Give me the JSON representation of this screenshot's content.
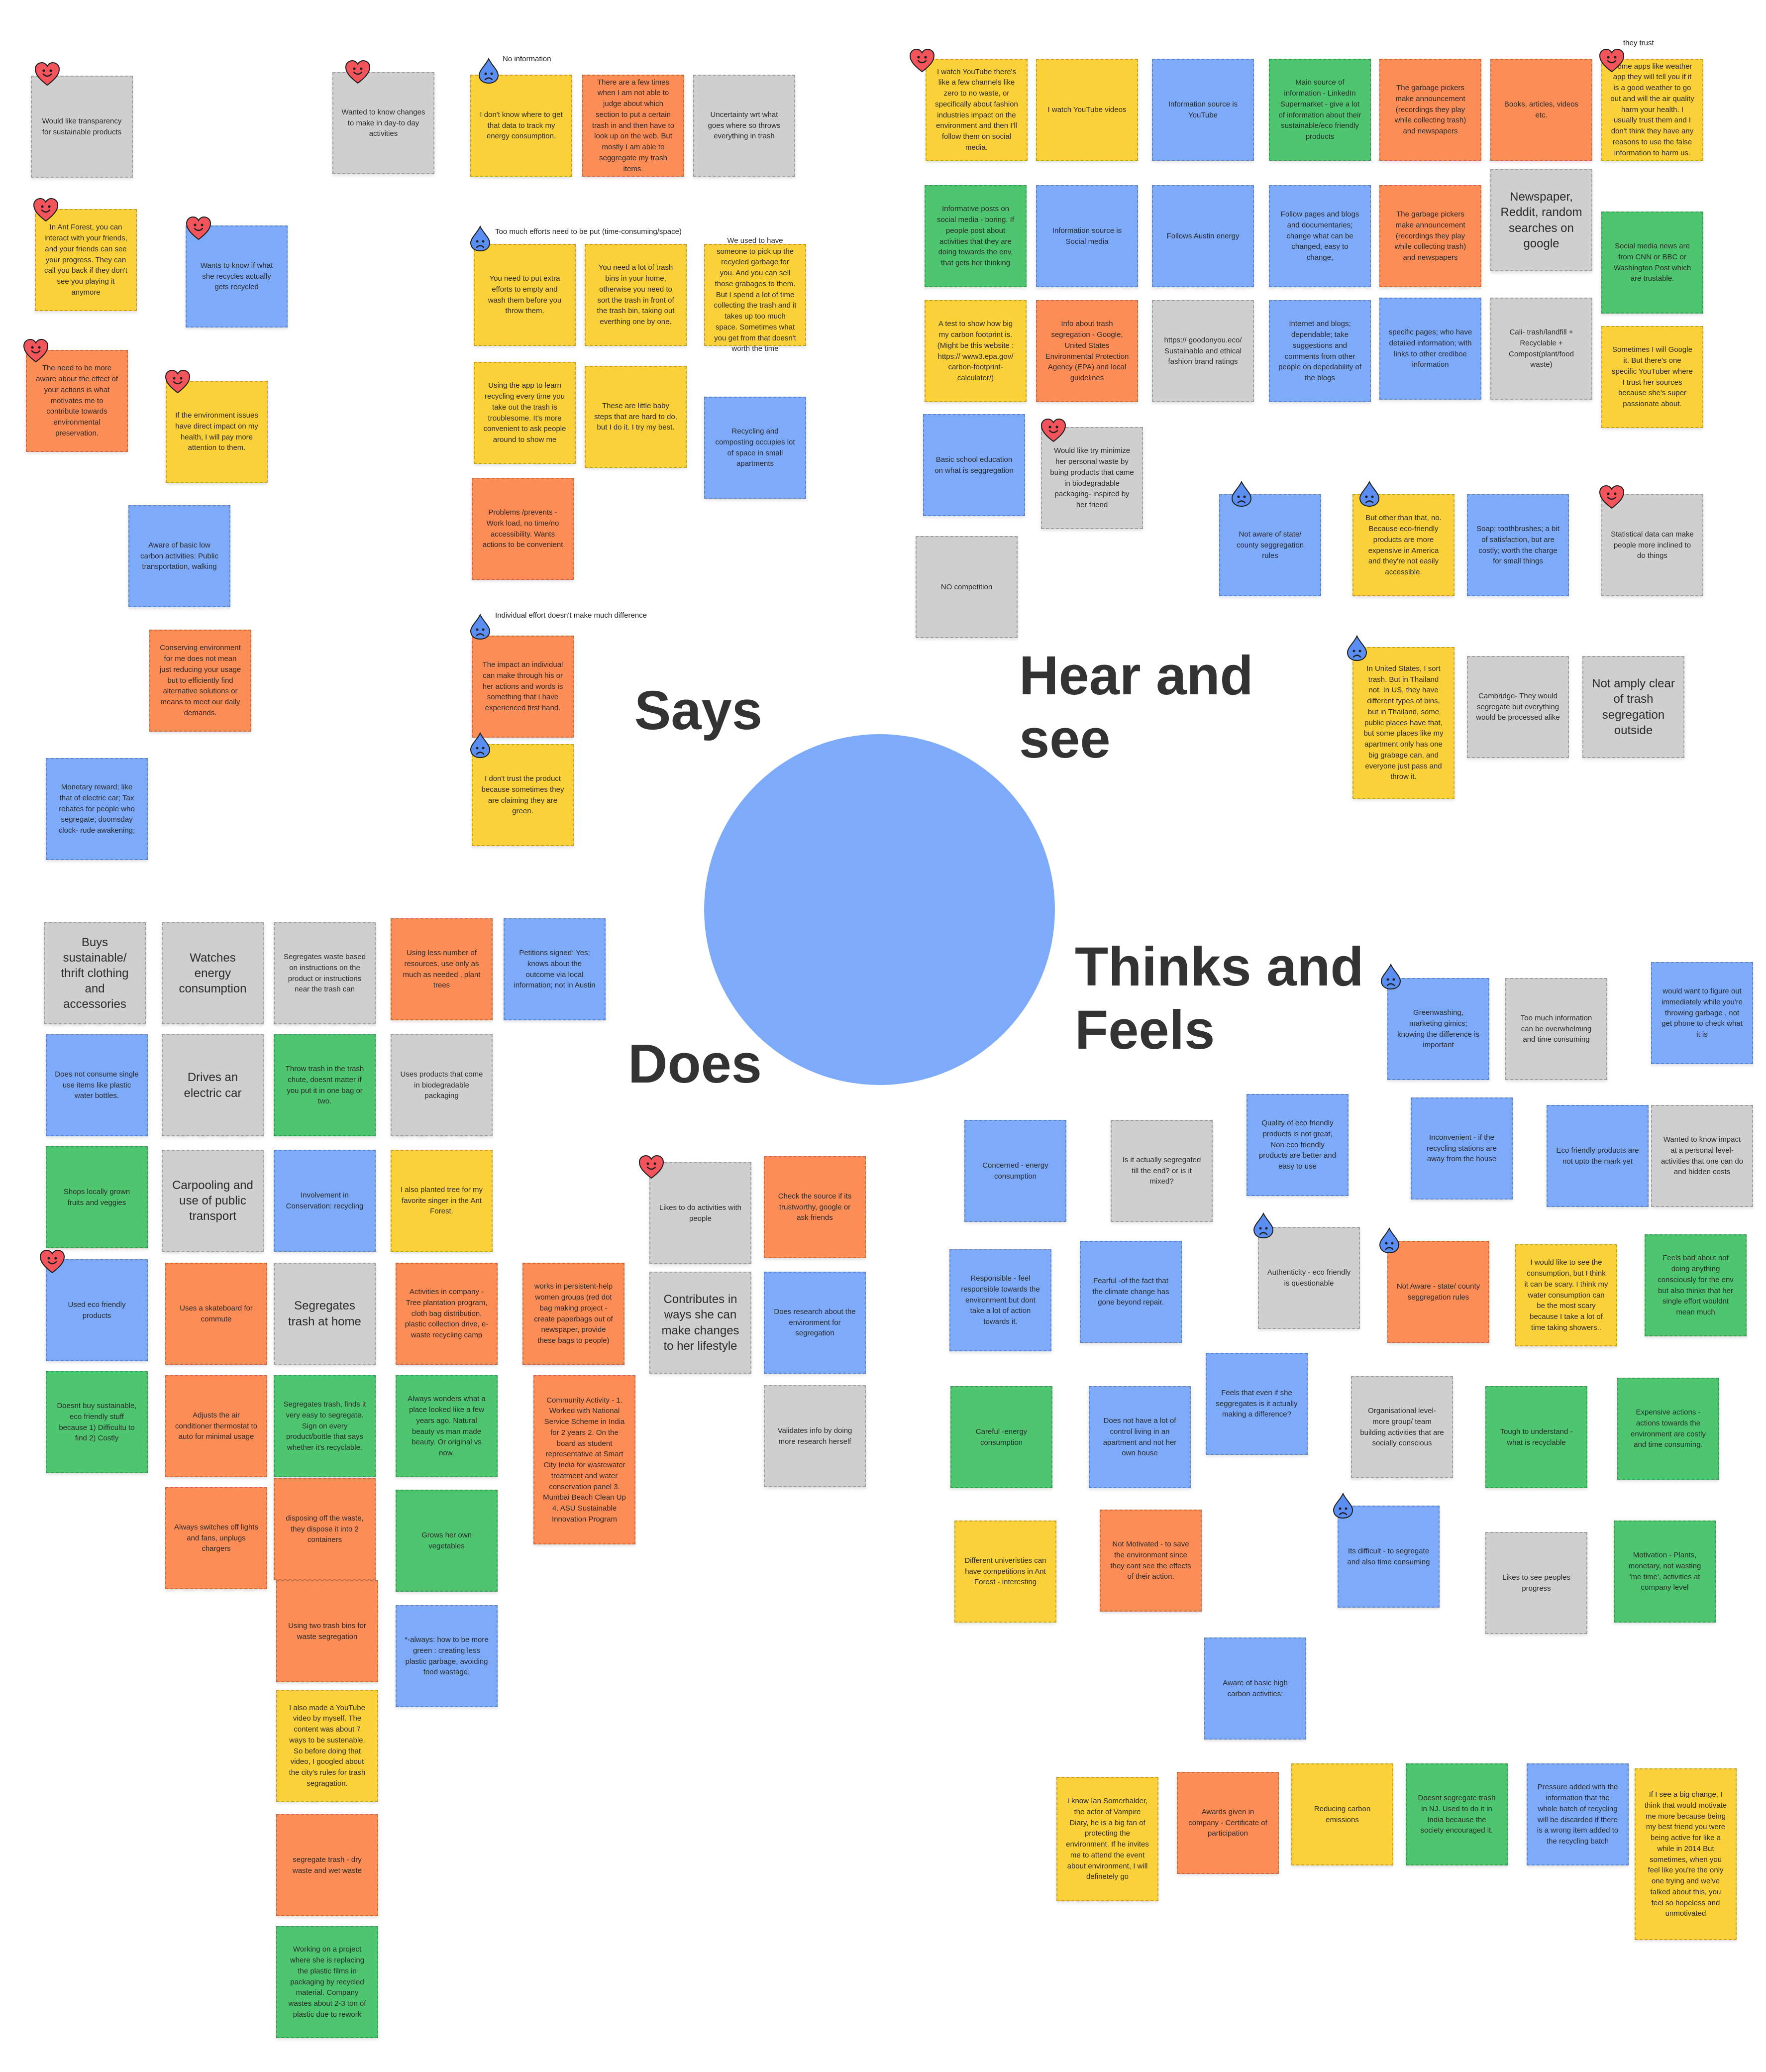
{
  "quadrants": {
    "says": "Says",
    "hear": "Hear and see",
    "does": "Does",
    "thinks": "Thinks and Feels"
  },
  "captions": {
    "no_info": "No information",
    "effort": "Too much efforts need to be put  (time-consuming/space)",
    "individual": "Individual effort doesn't make much difference",
    "trust": "they trust"
  },
  "emoji_names": {
    "heart": "heart-face-icon",
    "sad": "sad-drop-icon"
  },
  "colors": {
    "yellow": "#fbd139",
    "orange": "#fd8d57",
    "gray": "#cfcfcf",
    "blue": "#7dabfa",
    "green": "#4ec56f"
  },
  "says": [
    "Would like transparency for sustainable products",
    "Wanted to know changes to make in day-to day activities",
    "I don't know where to get that data to track my energy consumption.",
    "There are a few times when I am not able to judge about which section to put a certain trash in and then have to look up on the web. But mostly I am able to seggregate my trash items.",
    "Uncertainty wrt what goes where so throws everything in trash",
    "In Ant Forest, you can interact with your friends, and your friends can see your progress. They can call you back if they don't see you playing it anymore",
    "Wants to know if what she recycles actually gets recycled",
    "You need to put extra efforts to empty and wash them before you throw them.",
    "You need a lot of trash bins in your home, otherwise you need to sort the trash in front of the trash bin, taking out everthing one by one.",
    "We used to have someone to pick up the recycled garbage for you. And you can sell those grabages to them. But I spend a lot of time collecting the trash and it takes up too much space. Sometimes what you get from that doesn't worth the time",
    "The need to be more aware about the effect of your actions is what motivates me to contribute towards environmental preservation.",
    "If the environment issues have direct impact on my health, I will pay more attention to them.",
    "Using the app to learn recycling every time you take out the trash is troublesome. It's more convenient to ask people around to show me",
    "These are little baby steps that are hard to do, but I do it. I try my best.",
    "Recycling and composting occupies lot of space in small apartments",
    "Problems /prevents - Work load, no time/no accessibility. Wants actions to be convenient",
    "Aware of basic low carbon activities: Public transportation, walking",
    "Conserving environment for me does not mean just reducing your usage but to efficiently find alternative solutions or means to meet our daily demands.",
    "The impact an individual can make through his or her actions and words is something that I have experienced first hand.",
    "I don't trust the product because sometimes they are claiming they are green.",
    "Monetary reward; like that of electric car; Tax rebates for people who segregate; doomsday clock- rude awakening;"
  ],
  "hear": [
    "I watch YouTube there's like a few channels like zero to no waste, or specifically about  fashion industries impact on the environment and then I'll follow them on social media.",
    "I watch YouTube videos",
    "Information source is YouTube",
    "Main source of information - LinkedIn Supermarket - give a lot of information about their sustainable/eco friendly products",
    "The garbage pickers make announcement (recordings they play while collecting trash) and newspapers",
    "Books, articles, videos etc.",
    "Some apps like weather app they will tell you if it is a good weather to go out and will the air quality harm your health. I usually trust them and I don't think they have any reasons to use the false information to harm us.",
    "Informative posts on social media - boring. If people post about activities that they are doing towards the env, that gets her thinking",
    "Information source is Social media",
    "Follows Austin energy",
    "Follow pages and blogs and documentaries; change what can be changed; easy to change,",
    "The garbage pickers make announcement (recordings they play while collecting trash) and newspapers",
    "Newspaper, Reddit, random searches on google",
    "Social media news are from CNN or BBC or Washington Post which are trustable.",
    "A test to show how big my carbon footprint is. (Might be this website : https:// www3.epa.gov/ carbon-footprint-calculator/)",
    "Info about trash segregation - Google, United States Environmental Protection Agency (EPA) and local guidelines",
    "https:// goodonyou.eco/ Sustainable and ethical fashion brand ratings",
    "Internet and blogs; dependable; take suggestions and comments from other people on depedability of the blogs",
    "specific pages; who have detailed information; with links to other crediboe information",
    "Cali- trash/landfill + Recyclable + Compost(plant/food waste)",
    "Sometimes I will Google it. But there's one specific YouTuber where I trust her sources because she's super passionate about.",
    "Basic school education on what is seggregation",
    "Would like try minimize her personal waste by buing products that came in biodegradable packaging- inspired by her friend",
    "Not aware of state/ county seggregation rules",
    "But other than that, no. Because eco-friendly products are more expensive in America and they're not easily accessible.",
    "Soap; toothbrushes; a bit of satisfaction, but are costly; worth the charge for small things",
    "Statistical data can make people more inclined to do things",
    "NO competition",
    "In United States, I sort trash. But in Thailand not. In US, they have different types of bins, but in Thailand, some public  places have that, but some places like my apartment only has one big grabage can, and everyone just pass and throw it.",
    "Cambridge- They would segregate but everything would be processed alike",
    "Not amply clear of trash segregation outside"
  ],
  "does": [
    "Buys sustainable/ thrift clothing and accessories",
    "Watches energy consumption",
    "Segregates waste based on instructions on the product or instructions near the trash can",
    "Using less number of resources, use only as much as needed , plant trees",
    "Petitions signed: Yes; knows about the outcome via local information; not in Austin",
    "Does not consume single use items like plastic water bottles.",
    "Drives an electric car",
    "Throw trash in the trash chute, doesnt matter if you put it in one bag or two.",
    "Uses products that come in biodegradable packaging",
    "Shops locally grown fruits and veggies",
    "Carpooling and use of public transport",
    "Involvement in Conservation: recycling",
    "I also planted tree for my favorite singer in the Ant Forest.",
    "Likes to do activities with people",
    "Check the source if its trustworthy, google or ask friends",
    "Used eco friendly products",
    "Uses a skateboard for commute",
    "Segregates trash at home",
    "Activities in company - Tree plantation program, cloth bag distribution, plastic collection drive, e-waste recycling camp",
    "works in persistent-help women groups (red dot bag making project -  create paperbags out of newspaper, provide these bags to people)",
    "Contributes in ways she can make changes to her lifestyle",
    "Does research about the environment for segregation",
    "Doesnt buy sustainable, eco friendly stuff because 1) Difficultu to find 2) Costly",
    "Adjusts the air conditioner thermostat to auto for minimal usage",
    "Segregates trash, finds it very easy to segregate. Sign on every product/bottle that says whether it's recyclable.",
    "Always wonders what a place looked like a few years ago. Natural beauty vs man made beauty. Or original vs now.",
    "Community Activity - 1. Worked with National Service Scheme in India for 2 years 2. On the board as student representative at Smart City India for wastewater treatment and water conservation panel 3. Mumbai Beach Clean Up 4. ASU Sustainable Innovation Program",
    "Validates info by doing more research herself",
    "Always switches off lights and fans, unplugs chargers",
    "disposing  off the waste, they dispose it into 2 containers",
    "Grows her own vegetables",
    "Using two trash bins for waste segregation",
    "*-always: how to be more green : creating less plastic garbage, avoiding food wastage,",
    "I also made a YouTube video by myself. The content was about 7 ways to be sustenable. So before doing that video, I googled about the city's rules for trash segragation.",
    "segregate trash -  dry waste and wet waste",
    "Working on a project where she is replacing the plastic films in packaging by recycled material. Company wastes about 2-3 ton of plastic due to rework"
  ],
  "thinks": [
    "Greenwashing, marketing gimics; knowing the difference is important",
    "Too much information can be overwhelming and time consuming",
    "would want to figure out immediately while you're throwing garbage , not get phone to check what it is",
    "Concerned - energy consumption",
    "Is it actually segregated till the end? or is it mixed?",
    "Quality of eco friendly products is not great, Non eco friendly products are better and easy to use",
    "Inconvenient -  if the recycling stations are away from the house",
    "Eco friendly products are not upto the mark yet",
    "Wanted to know impact at a personal level- activities that one can do and hidden costs",
    "Responsible - feel responsible towards the environment but dont take a lot of action towards it.",
    "Fearful -of the fact that the climate change has gone beyond repair.",
    "Authenticity - eco friendly is questionable",
    "Not Aware -  state/ county seggregation rules",
    "I would like to see the consumption, but I think it can be scary. I think my water consumption can be the most scary because I take a lot of time taking showers..",
    "Feels bad about not doing anything consciously for the env but also thinks that her single effort wouldnt mean much",
    "Careful -energy consumption",
    "Does not have a lot of control living in an apartment and not her own house",
    "Feels that even if she seggregates is it actually making a difference?",
    "Organisational level- more group/ team building activities that are socially conscious",
    "Tough to understand - what is recyclable",
    "Expensive actions - actions towards the environment are  costly and time consuming.",
    "Different univeristies can have competitions in Ant Forest - interesting",
    "Not Motivated - to save the environment since they cant see the effects of their action.",
    "Its difficult - to segregate and also time consuming",
    "Likes to see peoples progress",
    "Motivation - Plants, monetary, not wasting 'me time', activities at company level",
    "Aware of basic high carbon activities:",
    "I know Ian Somerhalder, the actor of Vampire Diary, he is a big fan of protecting the environment. If he invites me to attend the event about environment, I will definetely go",
    "Awards given in company - Certificate of participation",
    "Reducing carbon emissions",
    "Doesnt segregate trash in NJ. Used to do it in India because the society encouraged it.",
    "Pressure added with the information that the whole batch of recycling will be discarded if there is a wrong item added to the recycling batch",
    "If I see a big change, I think that would motivate me more because being my best friend you were being active for like a while in 2014 But sometimes, when you feel like you're the only one trying and we've talked about this, you feel so hopeless and unmotivated"
  ]
}
